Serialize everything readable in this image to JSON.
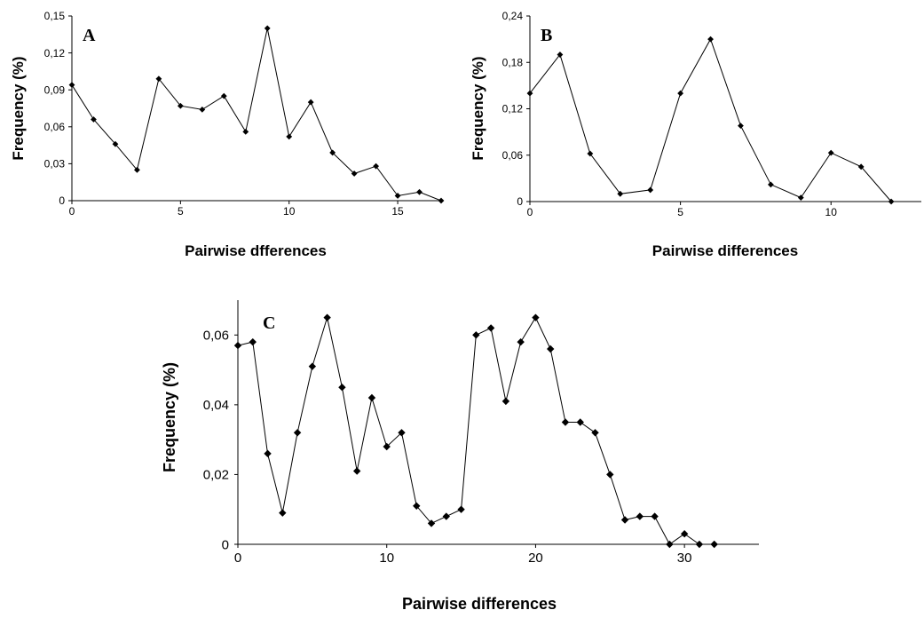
{
  "chart_data": [
    {
      "type": "line",
      "panel_label": "A",
      "xlabel": "Pairwise dfferences",
      "ylabel": "Frequency (%)",
      "xlim": [
        0,
        17
      ],
      "ylim": [
        0,
        0.15
      ],
      "x_ticks": [
        0,
        5,
        10,
        15
      ],
      "x_tick_labels": [
        "0",
        "5",
        "10",
        "15"
      ],
      "y_ticks": [
        0,
        0.03,
        0.06,
        0.09,
        0.12,
        0.15
      ],
      "y_tick_labels": [
        "0",
        "0,03",
        "0,06",
        "0,09",
        "0,12",
        "0,15"
      ],
      "grid": false,
      "series": [
        {
          "x": [
            0,
            1,
            2,
            3,
            4,
            5,
            6,
            7,
            8,
            9,
            10,
            11,
            12,
            13,
            14,
            15,
            16,
            17
          ],
          "values": [
            0.094,
            0.066,
            0.046,
            0.025,
            0.099,
            0.077,
            0.074,
            0.085,
            0.056,
            0.14,
            0.052,
            0.08,
            0.039,
            0.022,
            0.028,
            0.004,
            0.007,
            0.0
          ]
        }
      ]
    },
    {
      "type": "line",
      "panel_label": "B",
      "xlabel": "Pairwise differences",
      "ylabel": "Frequency (%)",
      "xlim": [
        0,
        13
      ],
      "ylim": [
        0,
        0.24
      ],
      "x_ticks": [
        0,
        5,
        10
      ],
      "x_tick_labels": [
        "0",
        "5",
        "10"
      ],
      "y_ticks": [
        0,
        0.06,
        0.12,
        0.18,
        0.24
      ],
      "y_tick_labels": [
        "0",
        "0,06",
        "0,12",
        "0,18",
        "0,24"
      ],
      "grid": false,
      "series": [
        {
          "x": [
            0,
            1,
            2,
            3,
            4,
            5,
            6,
            7,
            8,
            9,
            10,
            11,
            12
          ],
          "values": [
            0.14,
            0.19,
            0.062,
            0.01,
            0.015,
            0.14,
            0.21,
            0.098,
            0.022,
            0.005,
            0.063,
            0.045,
            0.0
          ]
        }
      ]
    },
    {
      "type": "line",
      "panel_label": "C",
      "xlabel": "Pairwise differences",
      "ylabel": "Frequency (%)",
      "xlim": [
        0,
        35
      ],
      "ylim": [
        0,
        0.07
      ],
      "x_ticks": [
        0,
        10,
        20,
        30
      ],
      "x_tick_labels": [
        "0",
        "10",
        "20",
        "30"
      ],
      "y_ticks": [
        0,
        0.02,
        0.04,
        0.06
      ],
      "y_tick_labels": [
        "0",
        "0,02",
        "0,04",
        "0,06"
      ],
      "grid": false,
      "series": [
        {
          "x": [
            0,
            1,
            2,
            3,
            4,
            5,
            6,
            7,
            8,
            9,
            10,
            11,
            12,
            13,
            14,
            15,
            16,
            17,
            18,
            19,
            20,
            21,
            22,
            23,
            24,
            25,
            26,
            27,
            28,
            29,
            30,
            31,
            32
          ],
          "values": [
            0.057,
            0.058,
            0.026,
            0.009,
            0.032,
            0.051,
            0.065,
            0.045,
            0.021,
            0.042,
            0.028,
            0.032,
            0.011,
            0.006,
            0.008,
            0.01,
            0.06,
            0.062,
            0.041,
            0.058,
            0.065,
            0.056,
            0.035,
            0.035,
            0.032,
            0.02,
            0.007,
            0.008,
            0.008,
            0.0,
            0.003,
            0.0,
            0.0
          ]
        }
      ]
    }
  ]
}
